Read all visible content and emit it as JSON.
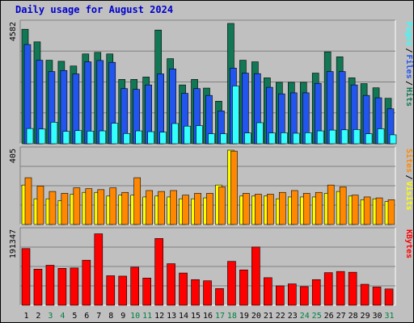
{
  "colors": {
    "background": "#c0c0c0",
    "pages_bar": "#33ffff",
    "files_bar": "#2255ee",
    "hits_bar": "#117755",
    "visits_bar": "#ffff00",
    "sites_bar": "#ff8800",
    "kbytes_bar": "#ff0000",
    "title": "#0000cc",
    "weekend_day": "#008040",
    "weekday_day": "#000000"
  },
  "chart_data": {
    "type": "bar",
    "title": "Daily usage for August 2024",
    "days": [
      "1",
      "2",
      "3",
      "4",
      "5",
      "6",
      "7",
      "8",
      "9",
      "10",
      "11",
      "12",
      "13",
      "14",
      "15",
      "16",
      "17",
      "18",
      "19",
      "20",
      "21",
      "22",
      "23",
      "24",
      "25",
      "26",
      "27",
      "28",
      "29",
      "30",
      "31"
    ],
    "weekend_days": [
      "3",
      "4",
      "10",
      "11",
      "17",
      "18",
      "24",
      "25",
      "31"
    ],
    "panels": [
      {
        "id": "hits_files_pages",
        "ymax_label": "4582",
        "ylim": [
          0,
          4582
        ],
        "legend": [
          {
            "label": "Pages",
            "color": "#33ffff"
          },
          {
            "label": "Files",
            "color": "#2255ee"
          },
          {
            "label": "Hits",
            "color": "#117755"
          }
        ],
        "series": [
          {
            "name": "Hits",
            "values": [
              4360,
              3880,
              3180,
              3140,
              2960,
              3420,
              3480,
              3420,
              2450,
              2450,
              2540,
              4330,
              3240,
              2240,
              2450,
              2120,
              1620,
              4582,
              3180,
              3120,
              2510,
              2340,
              2340,
              2340,
              2690,
              3500,
              3310,
              2510,
              2290,
              2130,
              1730
            ]
          },
          {
            "name": "Files",
            "values": [
              3780,
              3180,
              2750,
              2790,
              2660,
              3120,
              3170,
              3100,
              2100,
              2070,
              2240,
              2660,
              2850,
              1920,
              2100,
              1840,
              1250,
              2880,
              2690,
              2670,
              2150,
              1900,
              1940,
              1940,
              2300,
              2750,
              2750,
              2240,
              1840,
              1750,
              1330
            ]
          },
          {
            "name": "Pages",
            "values": [
              580,
              560,
              820,
              470,
              500,
              480,
              490,
              780,
              390,
              490,
              460,
              440,
              770,
              670,
              690,
              380,
              380,
              2200,
              410,
              800,
              410,
              420,
              400,
              420,
              490,
              520,
              530,
              540,
              380,
              570,
              340
            ]
          }
        ]
      },
      {
        "id": "sites_visits",
        "ymax_label": "405",
        "ylim": [
          0,
          405
        ],
        "legend": [
          {
            "label": "Sites",
            "color": "#ff8800"
          },
          {
            "label": "Visits",
            "color": "#ffff00"
          }
        ],
        "series": [
          {
            "name": "Visits",
            "values": [
              215,
              140,
              140,
              130,
              165,
              175,
              175,
              155,
              160,
              160,
              150,
              155,
              150,
              140,
              140,
              145,
              215,
              405,
              155,
              155,
              155,
              140,
              150,
              150,
              150,
              170,
              180,
              155,
              135,
              140,
              125
            ]
          },
          {
            "name": "Sites",
            "values": [
              255,
              210,
              180,
              170,
              200,
              195,
              190,
              200,
              175,
              255,
              185,
              180,
              185,
              160,
              170,
              170,
              205,
              400,
              170,
              165,
              165,
              175,
              185,
              170,
              175,
              215,
              205,
              160,
              150,
              145,
              135
            ]
          }
        ]
      },
      {
        "id": "kbytes",
        "ymax_label": "191347",
        "ylim": [
          0,
          191347
        ],
        "legend": [
          {
            "label": "KBytes",
            "color": "#ff0000"
          }
        ],
        "series": [
          {
            "name": "KBytes",
            "values": [
              146000,
              93000,
              103000,
              95000,
              96000,
              116000,
              184000,
              76000,
              75000,
              98000,
              70000,
              172000,
              107000,
              83000,
              66000,
              63000,
              43000,
              113000,
              91000,
              150000,
              71000,
              50000,
              55000,
              48000,
              66000,
              84000,
              87000,
              85000,
              54000,
              47000,
              42000
            ]
          }
        ]
      }
    ]
  }
}
